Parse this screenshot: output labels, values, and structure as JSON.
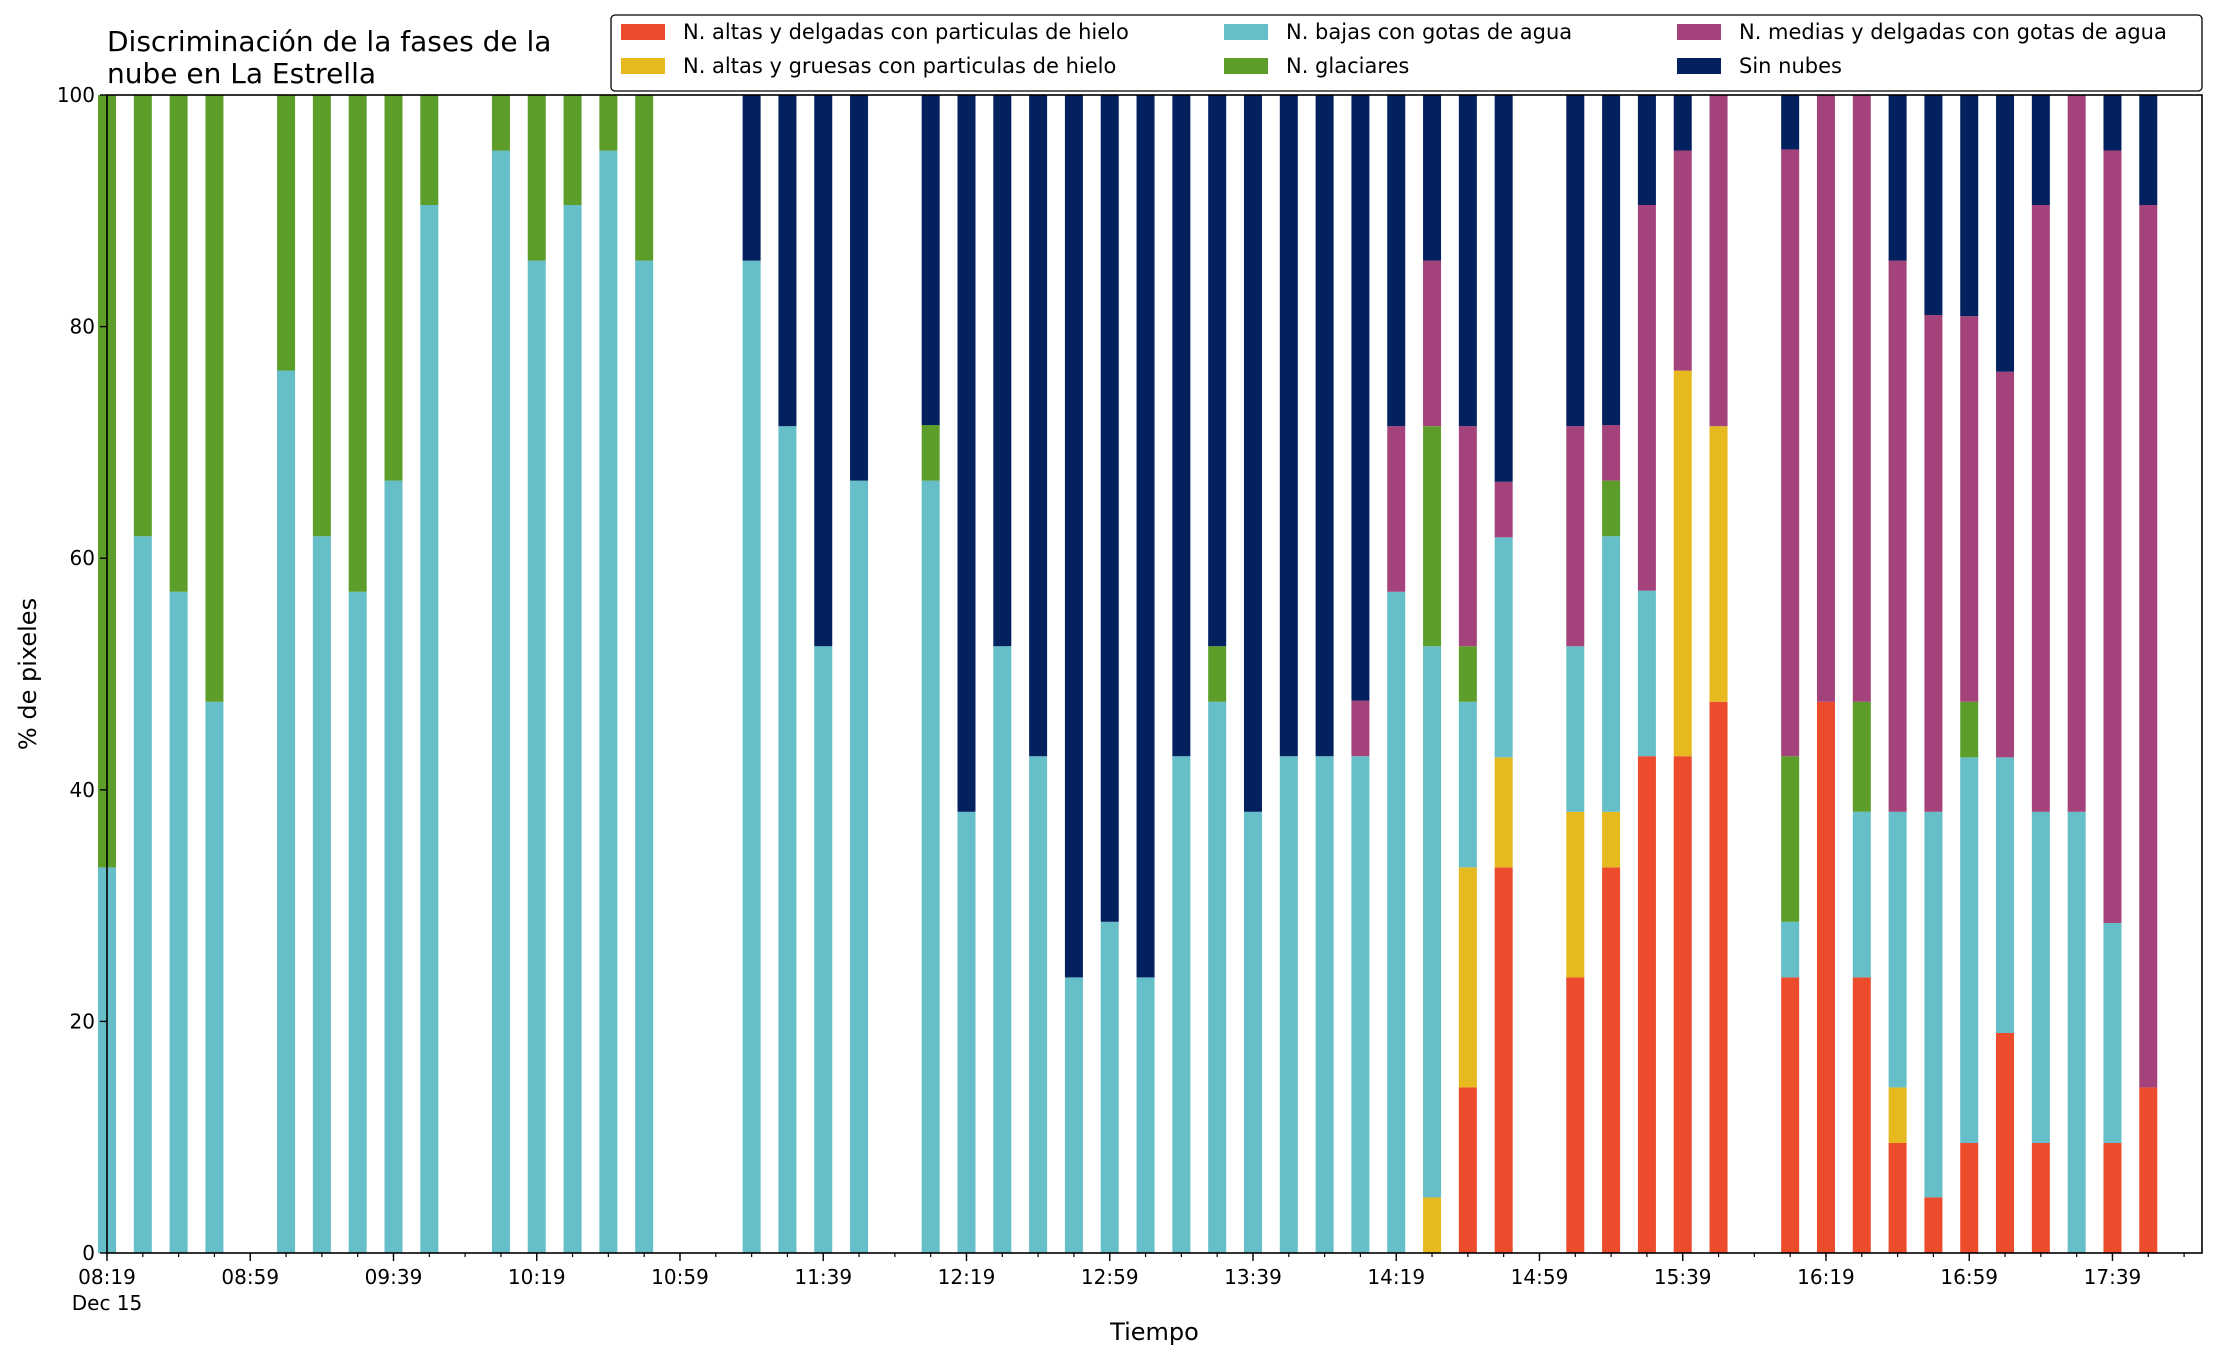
{
  "chart_data": {
    "type": "bar",
    "stacked": true,
    "title_lines": [
      "Discriminación de la fases de la",
      "nube en La Estrella"
    ],
    "xlabel": "Tiempo",
    "ylabel": "% de pixeles",
    "ylim": [
      0,
      100
    ],
    "yticks": [
      0,
      20,
      40,
      60,
      80,
      100
    ],
    "x_tick_labels": [
      "08:19",
      "08:59",
      "09:39",
      "10:19",
      "10:59",
      "11:39",
      "12:19",
      "12:59",
      "13:39",
      "14:19",
      "14:59",
      "15:39",
      "16:19",
      "16:59",
      "17:39"
    ],
    "x_date_label": "Dec 15",
    "x_start": "08:19",
    "x_end": "18:04",
    "bar_interval_minutes": 10,
    "grid": false,
    "legend_placement": "top",
    "series": [
      {
        "name": "N. altas y delgadas con particulas de hielo",
        "color": "#ec4b2c"
      },
      {
        "name": "N. altas y gruesas con particulas de hielo",
        "color": "#e6b91e"
      },
      {
        "name": "N. bajas con gotas de agua",
        "color": "#65bec8"
      },
      {
        "name": "N. glaciares",
        "color": "#5d9e2b"
      },
      {
        "name": "N. medias y delgadas con gotas de agua",
        "color": "#a4437b"
      },
      {
        "name": "Sin nubes",
        "color": "#03215f"
      }
    ],
    "bars": [
      {
        "time": "08:19",
        "values": [
          0,
          0,
          33.3,
          66.7,
          0,
          0
        ]
      },
      {
        "time": "08:29",
        "values": [
          0,
          0,
          61.9,
          38.1,
          0,
          0
        ]
      },
      {
        "time": "08:39",
        "values": [
          0,
          0,
          57.1,
          42.9,
          0,
          0
        ]
      },
      {
        "time": "08:49",
        "values": [
          0,
          0,
          47.6,
          52.4,
          0,
          0
        ]
      },
      {
        "time": "09:09",
        "values": [
          0,
          0,
          76.2,
          23.8,
          0,
          0
        ]
      },
      {
        "time": "09:19",
        "values": [
          0,
          0,
          61.9,
          38.1,
          0,
          0
        ]
      },
      {
        "time": "09:29",
        "values": [
          0,
          0,
          57.1,
          42.9,
          0,
          0
        ]
      },
      {
        "time": "09:39",
        "values": [
          0,
          0,
          66.7,
          33.3,
          0,
          0
        ]
      },
      {
        "time": "09:49",
        "values": [
          0,
          0,
          90.5,
          9.5,
          0,
          0
        ]
      },
      {
        "time": "10:09",
        "values": [
          0,
          0,
          95.2,
          4.8,
          0,
          0
        ]
      },
      {
        "time": "10:19",
        "values": [
          0,
          0,
          85.7,
          14.3,
          0,
          0
        ]
      },
      {
        "time": "10:29",
        "values": [
          0,
          0,
          90.5,
          9.5,
          0,
          0
        ]
      },
      {
        "time": "10:39",
        "values": [
          0,
          0,
          95.2,
          4.8,
          0,
          0
        ]
      },
      {
        "time": "10:49",
        "values": [
          0,
          0,
          85.7,
          14.3,
          0,
          0
        ]
      },
      {
        "time": "11:19",
        "values": [
          0,
          0,
          85.7,
          0,
          0,
          14.3
        ]
      },
      {
        "time": "11:29",
        "values": [
          0,
          0,
          71.4,
          0,
          0,
          28.6
        ]
      },
      {
        "time": "11:39",
        "values": [
          0,
          0,
          52.4,
          0,
          0,
          47.6
        ]
      },
      {
        "time": "11:49",
        "values": [
          0,
          0,
          66.7,
          0,
          0,
          33.3
        ]
      },
      {
        "time": "12:09",
        "values": [
          0,
          0,
          66.7,
          4.8,
          0,
          28.5
        ]
      },
      {
        "time": "12:19",
        "values": [
          0,
          0,
          38.1,
          0,
          0,
          61.9
        ]
      },
      {
        "time": "12:29",
        "values": [
          0,
          0,
          52.4,
          0,
          0,
          47.6
        ]
      },
      {
        "time": "12:39",
        "values": [
          0,
          0,
          42.9,
          0,
          0,
          57.1
        ]
      },
      {
        "time": "12:49",
        "values": [
          0,
          0,
          23.8,
          0,
          0,
          76.2
        ]
      },
      {
        "time": "12:59",
        "values": [
          0,
          0,
          28.6,
          0,
          0,
          71.4
        ]
      },
      {
        "time": "13:09",
        "values": [
          0,
          0,
          23.8,
          0,
          0,
          76.2
        ]
      },
      {
        "time": "13:19",
        "values": [
          0,
          0,
          42.9,
          0,
          0,
          57.1
        ]
      },
      {
        "time": "13:29",
        "values": [
          0,
          0,
          47.6,
          4.8,
          0,
          47.6
        ]
      },
      {
        "time": "13:39",
        "values": [
          0,
          0,
          38.1,
          0,
          0,
          61.9
        ]
      },
      {
        "time": "13:49",
        "values": [
          0,
          0,
          42.9,
          0,
          0,
          57.1
        ]
      },
      {
        "time": "13:59",
        "values": [
          0,
          0,
          42.9,
          0,
          0,
          57.1
        ]
      },
      {
        "time": "14:09",
        "values": [
          0,
          0,
          42.9,
          0,
          4.8,
          52.3
        ]
      },
      {
        "time": "14:19",
        "values": [
          0,
          0,
          57.1,
          0,
          14.3,
          28.6
        ]
      },
      {
        "time": "14:29",
        "values": [
          0,
          4.8,
          47.6,
          19.0,
          14.3,
          14.3
        ]
      },
      {
        "time": "14:39",
        "values": [
          14.3,
          19.0,
          14.3,
          4.8,
          19.0,
          28.6
        ]
      },
      {
        "time": "14:49",
        "values": [
          33.3,
          9.5,
          19.0,
          0,
          4.8,
          33.4
        ]
      },
      {
        "time": "15:09",
        "values": [
          23.8,
          14.3,
          14.3,
          0,
          19.0,
          28.6
        ]
      },
      {
        "time": "15:19",
        "values": [
          33.3,
          4.8,
          23.8,
          4.8,
          4.8,
          28.5
        ]
      },
      {
        "time": "15:29",
        "values": [
          42.9,
          0,
          14.3,
          0,
          33.3,
          9.5
        ]
      },
      {
        "time": "15:39",
        "values": [
          42.9,
          33.3,
          0,
          0,
          19.0,
          4.8
        ]
      },
      {
        "time": "15:49",
        "values": [
          47.6,
          23.8,
          0,
          0,
          28.6,
          0
        ]
      },
      {
        "time": "16:09",
        "values": [
          23.8,
          0,
          4.8,
          14.3,
          52.4,
          4.7
        ]
      },
      {
        "time": "16:19",
        "values": [
          47.6,
          0,
          0,
          0,
          52.4,
          0
        ]
      },
      {
        "time": "16:29",
        "values": [
          23.8,
          0,
          14.3,
          9.5,
          52.4,
          0
        ]
      },
      {
        "time": "16:39",
        "values": [
          9.5,
          4.8,
          23.8,
          0,
          47.6,
          14.3
        ]
      },
      {
        "time": "16:49",
        "values": [
          4.8,
          0,
          33.3,
          0,
          42.9,
          19.0
        ]
      },
      {
        "time": "16:59",
        "values": [
          9.5,
          0,
          33.3,
          4.8,
          33.3,
          19.1
        ]
      },
      {
        "time": "17:09",
        "values": [
          19.0,
          0,
          23.8,
          0,
          33.3,
          23.9
        ]
      },
      {
        "time": "17:19",
        "values": [
          9.5,
          0,
          28.6,
          0,
          52.4,
          9.5
        ]
      },
      {
        "time": "17:29",
        "values": [
          0,
          0,
          38.1,
          0,
          61.9,
          0
        ]
      },
      {
        "time": "17:39",
        "values": [
          9.5,
          0,
          19.0,
          0,
          66.7,
          4.8
        ]
      },
      {
        "time": "17:49",
        "values": [
          14.3,
          0,
          0,
          0,
          76.2,
          9.5
        ]
      }
    ]
  }
}
